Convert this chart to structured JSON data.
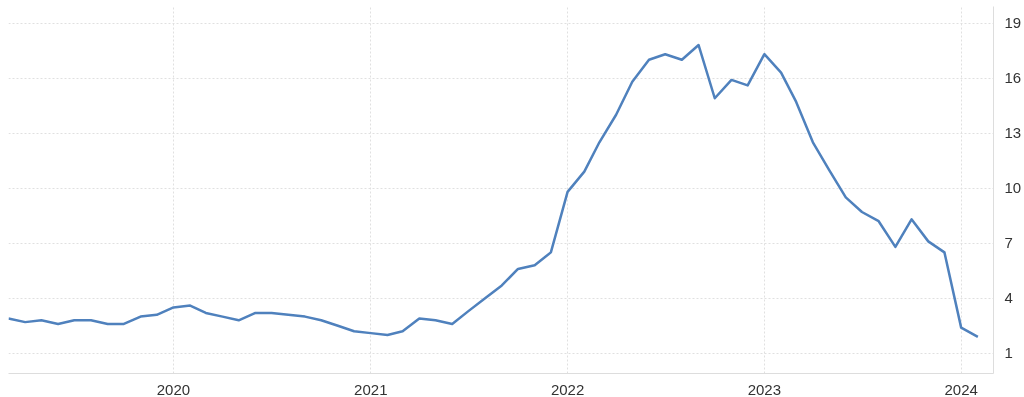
{
  "chart_data": {
    "type": "line",
    "x": [
      "2019-03",
      "2019-04",
      "2019-05",
      "2019-06",
      "2019-07",
      "2019-08",
      "2019-09",
      "2019-10",
      "2019-11",
      "2019-12",
      "2020-01",
      "2020-02",
      "2020-03",
      "2020-04",
      "2020-05",
      "2020-06",
      "2020-07",
      "2020-08",
      "2020-09",
      "2020-10",
      "2020-11",
      "2020-12",
      "2021-01",
      "2021-02",
      "2021-03",
      "2021-04",
      "2021-05",
      "2021-06",
      "2021-07",
      "2021-08",
      "2021-09",
      "2021-10",
      "2021-11",
      "2021-12",
      "2022-01",
      "2022-02",
      "2022-03",
      "2022-04",
      "2022-05",
      "2022-06",
      "2022-07",
      "2022-08",
      "2022-09",
      "2022-10",
      "2022-11",
      "2022-12",
      "2023-01",
      "2023-02",
      "2023-03",
      "2023-04",
      "2023-05",
      "2023-06",
      "2023-07",
      "2023-08",
      "2023-09",
      "2023-10",
      "2023-11",
      "2023-12",
      "2024-01",
      "2024-02"
    ],
    "series": [
      {
        "color": "#4f81bd",
        "values": [
          2.9,
          2.7,
          2.8,
          2.6,
          2.8,
          2.8,
          2.6,
          2.6,
          3.0,
          3.1,
          3.5,
          3.6,
          3.2,
          3.0,
          2.8,
          3.2,
          3.2,
          3.1,
          3.0,
          2.8,
          2.5,
          2.2,
          2.1,
          2.0,
          2.2,
          2.9,
          2.8,
          2.6,
          3.3,
          4.0,
          4.7,
          5.6,
          5.8,
          6.5,
          9.8,
          10.9,
          12.5,
          14.0,
          15.8,
          17.0,
          17.3,
          17.0,
          17.8,
          14.9,
          15.9,
          15.6,
          17.3,
          16.3,
          14.7,
          12.5,
          11.0,
          9.5,
          8.7,
          8.2,
          6.8,
          8.3,
          7.1,
          6.5,
          2.4,
          1.9
        ]
      }
    ],
    "xlim": [
      "2019-03",
      "2024-03"
    ],
    "xticks": [
      "2020",
      "2021",
      "2022",
      "2023",
      "2024"
    ],
    "ylim": [
      -0.1,
      19.9
    ],
    "yticks": [
      1,
      4,
      7,
      10,
      13,
      16,
      19
    ],
    "grid": true,
    "marker": "none",
    "line_style": "solid"
  }
}
